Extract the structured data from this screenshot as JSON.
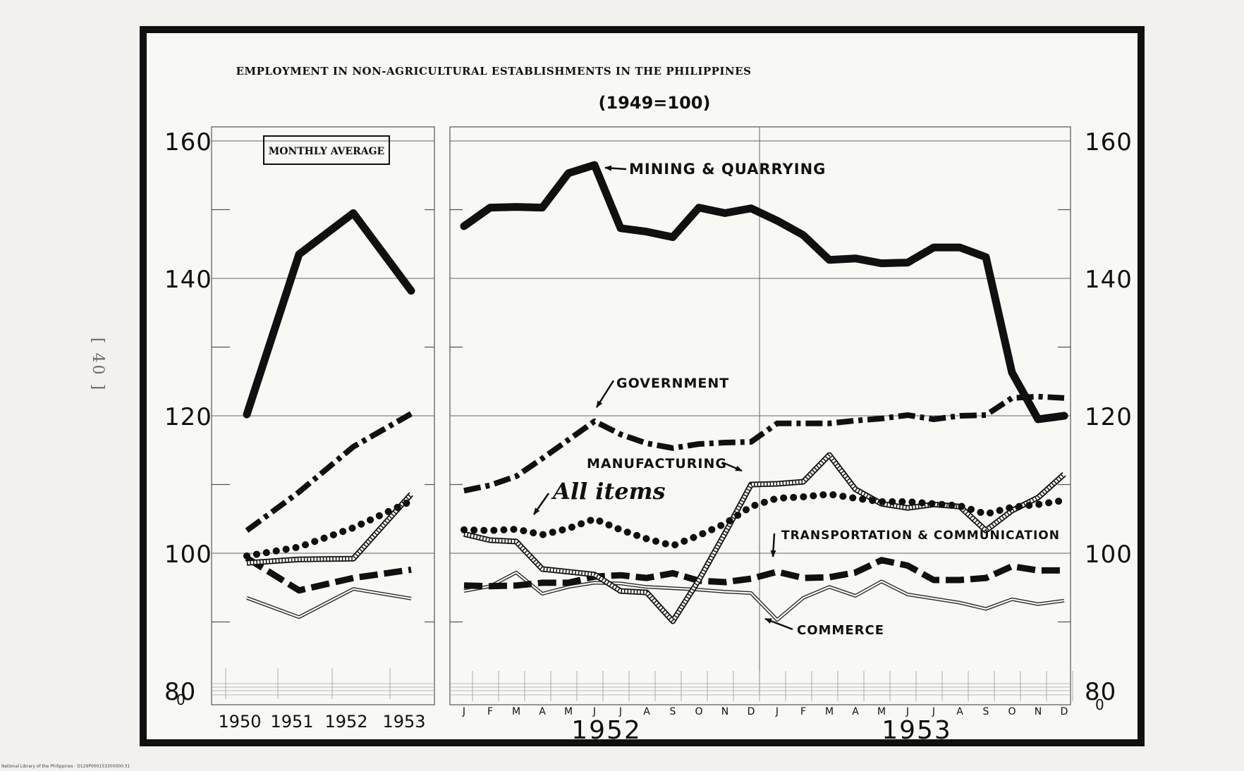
{
  "page": {
    "side_note": "[ 40 ]",
    "footer": "National Library of the Philippines · D129P000153300000.31"
  },
  "chart_data": {
    "type": "line",
    "title": "EMPLOYMENT IN NON-AGRICULTURAL ESTABLISHMENTS IN THE PHILIPPINES",
    "subtitle": "(1949=100)",
    "ylim": [
      80,
      160
    ],
    "y_ticks": [
      "160",
      "140",
      "120",
      "100",
      "80"
    ],
    "y_zero_label": "0",
    "grid": true,
    "colors": {
      "ink": "#101010",
      "paper": "#f8f8f5",
      "background": "#f2f1ed"
    },
    "panels": [
      {
        "label": "MONTHLY AVERAGE",
        "x": [
          "1950",
          "1951",
          "1952",
          "1953"
        ],
        "series": [
          {
            "name": "MINING & QUARRYING",
            "style": "solid-heavy",
            "values": [
              120.2,
              143.5,
              149.5,
              138.2
            ]
          },
          {
            "name": "GOVERNMENT",
            "style": "dash-dot",
            "values": [
              103.3,
              108.9,
              115.5,
              120.3
            ]
          },
          {
            "name": "MANUFACTURING",
            "style": "hatched",
            "values": [
              98.6,
              99.1,
              99.2,
              108.6
            ]
          },
          {
            "name": "All items",
            "style": "dotted-beads",
            "values": [
              99.6,
              100.9,
              103.7,
              107.6
            ]
          },
          {
            "name": "TRANSPORTATION & COMMUNICATION",
            "style": "dashed",
            "values": [
              99.3,
              94.6,
              96.4,
              97.6
            ]
          },
          {
            "name": "COMMERCE",
            "style": "double-thin",
            "values": [
              93.5,
              90.7,
              94.8,
              93.4
            ]
          }
        ]
      },
      {
        "x": [
          "J",
          "F",
          "M",
          "A",
          "M",
          "J",
          "J",
          "A",
          "S",
          "O",
          "N",
          "D",
          "J",
          "F",
          "M",
          "A",
          "M",
          "J",
          "J",
          "A",
          "S",
          "O",
          "N",
          "D"
        ],
        "year_labels": [
          "1952",
          "1953"
        ],
        "series": [
          {
            "name": "MINING & QUARRYING",
            "style": "solid-heavy",
            "values": [
              147.6,
              150.3,
              150.4,
              150.3,
              155.3,
              156.5,
              147.3,
              146.8,
              146.0,
              150.3,
              149.5,
              150.2,
              148.4,
              146.3,
              142.7,
              142.9,
              142.2,
              142.3,
              144.5,
              144.5,
              143.1,
              126.3,
              119.5,
              120.0
            ]
          },
          {
            "name": "GOVERNMENT",
            "style": "dash-dot",
            "values": [
              109.1,
              109.9,
              111.2,
              113.8,
              116.5,
              119.2,
              117.3,
              116.0,
              115.3,
              115.9,
              116.1,
              116.2,
              118.9,
              118.9,
              118.9,
              119.3,
              119.6,
              120.1,
              119.5,
              120.0,
              120.1,
              122.6,
              122.8,
              122.6
            ]
          },
          {
            "name": "MANUFACTURING",
            "style": "hatched",
            "values": [
              102.8,
              101.9,
              101.7,
              97.7,
              97.3,
              96.9,
              94.5,
              94.3,
              90.1,
              96.1,
              102.9,
              110.0,
              110.1,
              110.4,
              114.3,
              109.3,
              107.2,
              106.6,
              107.1,
              106.8,
              103.3,
              106.2,
              108.1,
              111.5
            ]
          },
          {
            "name": "All items",
            "style": "dotted-beads",
            "values": [
              103.4,
              103.3,
              103.5,
              102.7,
              103.6,
              105.0,
              103.4,
              102.1,
              101.1,
              102.6,
              104.3,
              106.8,
              108.0,
              108.2,
              108.6,
              108.0,
              107.5,
              107.5,
              107.2,
              106.9,
              105.7,
              106.7,
              107.1,
              107.7
            ]
          },
          {
            "name": "TRANSPORTATION & COMMUNICATION",
            "style": "dashed",
            "values": [
              95.3,
              95.2,
              95.3,
              95.7,
              95.7,
              96.6,
              96.8,
              96.4,
              97.1,
              96.0,
              95.8,
              96.3,
              97.3,
              96.4,
              96.5,
              97.2,
              99.0,
              98.2,
              96.1,
              96.1,
              96.4,
              98.1,
              97.5,
              97.5
            ]
          },
          {
            "name": "COMMERCE",
            "style": "double-thin",
            "values": [
              94.5,
              95.2,
              97.2,
              94.1,
              95.1,
              95.7,
              95.6,
              95.1,
              94.9,
              94.7,
              94.4,
              94.2,
              90.3,
              93.5,
              95.1,
              93.8,
              95.9,
              94.0,
              93.4,
              92.8,
              91.9,
              93.3,
              92.6,
              93.1
            ]
          }
        ]
      }
    ],
    "annotations": [
      {
        "text": "MINING & QUARRYING",
        "series": "MINING & QUARRYING"
      },
      {
        "text": "GOVERNMENT",
        "series": "GOVERNMENT"
      },
      {
        "text": "MANUFACTURING",
        "series": "MANUFACTURING"
      },
      {
        "text": "All items",
        "series": "All items"
      },
      {
        "text": "TRANSPORTATION & COMMUNICATION",
        "series": "TRANSPORTATION & COMMUNICATION"
      },
      {
        "text": "COMMERCE",
        "series": "COMMERCE"
      }
    ]
  }
}
